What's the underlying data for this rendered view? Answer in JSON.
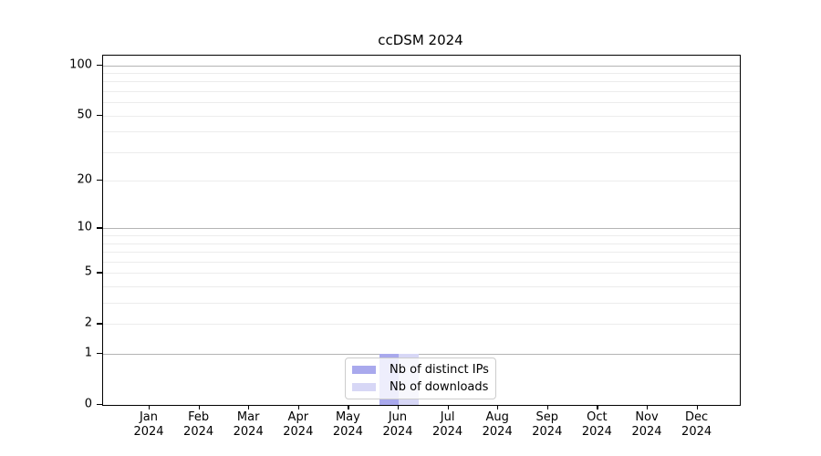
{
  "chart_data": {
    "type": "bar",
    "title": "ccDSM 2024",
    "categories": [
      "Jan 2024",
      "Feb 2024",
      "Mar 2024",
      "Apr 2024",
      "May 2024",
      "Jun 2024",
      "Jul 2024",
      "Aug 2024",
      "Sep 2024",
      "Oct 2024",
      "Nov 2024",
      "Dec 2024"
    ],
    "series": [
      {
        "name": "Nb of distinct IPs",
        "color": "#a9a9ed",
        "values": [
          0,
          0,
          0,
          0,
          0,
          1,
          0,
          0,
          0,
          0,
          0,
          0
        ]
      },
      {
        "name": "Nb of downloads",
        "color": "#d7d7f6",
        "values": [
          0,
          0,
          0,
          0,
          0,
          1,
          0,
          0,
          0,
          0,
          0,
          0
        ]
      }
    ],
    "xlabel": "",
    "ylabel": "",
    "y_axis": {
      "scale": "log10(1+y)",
      "tick_values": [
        0,
        1,
        2,
        5,
        10,
        20,
        50,
        100
      ],
      "tick_labels": [
        "0",
        "1",
        "2",
        "5",
        "10",
        "20",
        "50",
        "100"
      ],
      "range": [
        0,
        115
      ],
      "major_gridlines": [
        1,
        10,
        100
      ],
      "minor_gridlines": [
        2,
        3,
        4,
        5,
        6,
        7,
        8,
        9,
        20,
        30,
        40,
        50,
        60,
        70,
        80,
        90
      ]
    },
    "grid": true,
    "legend": {
      "position": "lower center",
      "entries": [
        "Nb of distinct IPs",
        "Nb of downloads"
      ]
    },
    "colors": {
      "major_gridline": "#b4b4b4",
      "minor_gridline": "#ececec",
      "axis": "#000000",
      "background": "#ffffff"
    }
  }
}
